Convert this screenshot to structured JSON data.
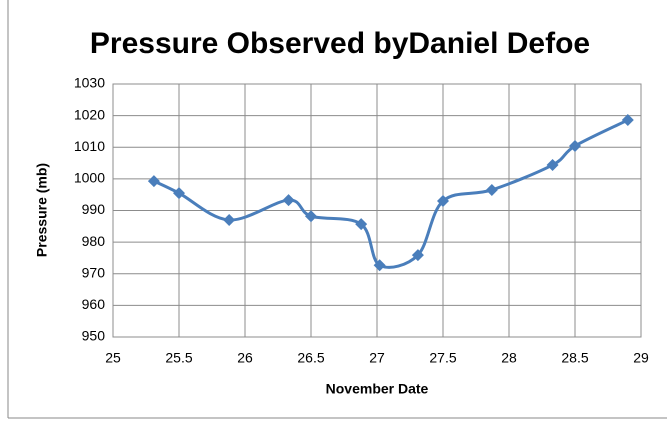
{
  "chart_data": {
    "type": "scatter",
    "title": "Pressure Observed byDaniel Defoe",
    "xlabel": "November Date",
    "ylabel": "Pressure (mb)",
    "x": [
      25.31,
      25.5,
      25.88,
      26.33,
      26.5,
      26.88,
      27.02,
      27.31,
      27.5,
      27.87,
      28.33,
      28.5,
      28.9
    ],
    "series": [
      {
        "name": "Pressure",
        "color": "#4a7ebb",
        "values": [
          999.3,
          995.5,
          987,
          993.3,
          988.2,
          985.7,
          972.7,
          975.9,
          993,
          996.5,
          1004.4,
          1010.4,
          1018.6
        ]
      }
    ],
    "xlim": [
      25,
      29
    ],
    "xticks": [
      25,
      25.5,
      26,
      26.5,
      27,
      27.5,
      28,
      28.5,
      29
    ],
    "ylim": [
      950,
      1030
    ],
    "yticks": [
      950,
      960,
      970,
      980,
      990,
      1000,
      1010,
      1020,
      1030
    ],
    "grid": true,
    "smooth": true
  }
}
